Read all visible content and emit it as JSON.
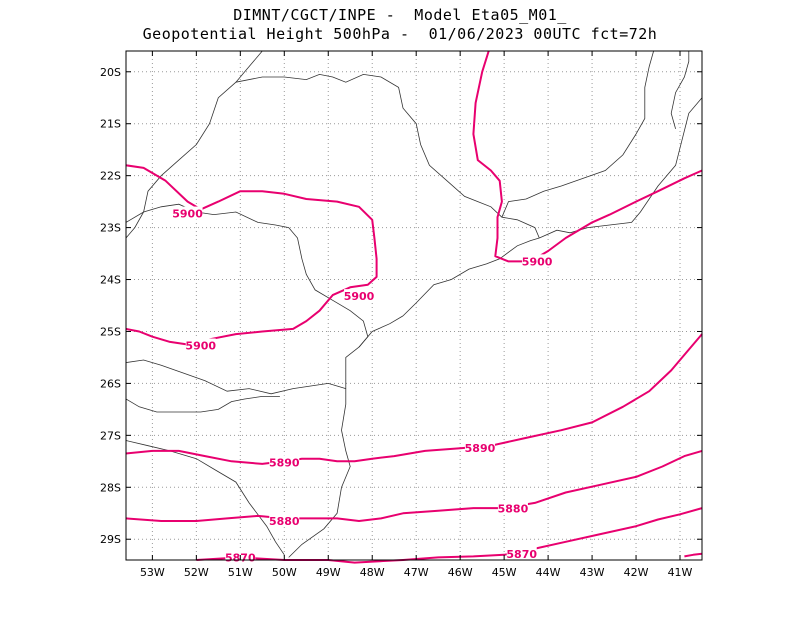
{
  "header": {
    "line1": "DIMNT/CGCT/INPE -  Model Eta05_M01_",
    "line2": "Geopotential Height 500hPa -  01/06/2023 00UTC fct=72h"
  },
  "chart_data": {
    "type": "map-contour",
    "variable": "Geopotential Height 500hPa",
    "lon_range": [
      -53.6,
      -40.5
    ],
    "lat_range": [
      -29.4,
      -19.6
    ],
    "x_ticks": [
      "53W",
      "52W",
      "51W",
      "50W",
      "49W",
      "48W",
      "47W",
      "46W",
      "45W",
      "44W",
      "43W",
      "42W",
      "41W"
    ],
    "y_ticks": [
      "20S",
      "21S",
      "22S",
      "23S",
      "24S",
      "25S",
      "26S",
      "27S",
      "28S",
      "29S"
    ],
    "grid": true,
    "contour_color": "#e8006f",
    "contours": [
      {
        "level": "5900",
        "segment": "west",
        "points": [
          [
            -53.6,
            -21.8
          ],
          [
            -53.2,
            -21.85
          ],
          [
            -52.7,
            -22.1
          ],
          [
            -52.2,
            -22.5
          ],
          [
            -51.9,
            -22.65
          ],
          [
            -51.5,
            -22.5
          ],
          [
            -51.0,
            -22.3
          ],
          [
            -50.5,
            -22.3
          ],
          [
            -50.0,
            -22.35
          ],
          [
            -49.5,
            -22.45
          ],
          [
            -48.8,
            -22.5
          ],
          [
            -48.3,
            -22.6
          ],
          [
            -48.0,
            -22.85
          ],
          [
            -47.95,
            -23.2
          ],
          [
            -47.9,
            -23.6
          ],
          [
            -47.9,
            -23.95
          ],
          [
            -48.1,
            -24.1
          ],
          [
            -48.5,
            -24.15
          ],
          [
            -48.9,
            -24.3
          ],
          [
            -49.2,
            -24.6
          ],
          [
            -49.5,
            -24.8
          ],
          [
            -49.8,
            -24.95
          ],
          [
            -50.5,
            -25.0
          ],
          [
            -51.1,
            -25.05
          ],
          [
            -51.7,
            -25.15
          ],
          [
            -52.2,
            -25.25
          ],
          [
            -52.6,
            -25.2
          ],
          [
            -53.0,
            -25.1
          ],
          [
            -53.3,
            -25.0
          ],
          [
            -53.6,
            -24.95
          ]
        ]
      },
      {
        "level": "5900",
        "segment": "east",
        "points": [
          [
            -45.35,
            -19.6
          ],
          [
            -45.5,
            -20.0
          ],
          [
            -45.65,
            -20.6
          ],
          [
            -45.7,
            -21.2
          ],
          [
            -45.6,
            -21.7
          ],
          [
            -45.3,
            -21.9
          ],
          [
            -45.1,
            -22.1
          ],
          [
            -45.05,
            -22.5
          ],
          [
            -45.15,
            -22.8
          ],
          [
            -45.15,
            -23.2
          ],
          [
            -45.2,
            -23.55
          ],
          [
            -44.9,
            -23.65
          ],
          [
            -44.4,
            -23.65
          ],
          [
            -44.0,
            -23.45
          ],
          [
            -43.6,
            -23.2
          ],
          [
            -43.0,
            -22.9
          ],
          [
            -42.6,
            -22.75
          ],
          [
            -42.0,
            -22.5
          ],
          [
            -41.5,
            -22.3
          ],
          [
            -40.9,
            -22.05
          ],
          [
            -40.5,
            -21.9
          ]
        ]
      },
      {
        "level": "5890",
        "points": [
          [
            -53.6,
            -27.35
          ],
          [
            -53.0,
            -27.3
          ],
          [
            -52.4,
            -27.3
          ],
          [
            -51.8,
            -27.4
          ],
          [
            -51.2,
            -27.5
          ],
          [
            -50.5,
            -27.55
          ],
          [
            -50.0,
            -27.5
          ],
          [
            -49.6,
            -27.45
          ],
          [
            -49.2,
            -27.45
          ],
          [
            -48.8,
            -27.5
          ],
          [
            -48.4,
            -27.5
          ],
          [
            -48.0,
            -27.45
          ],
          [
            -47.5,
            -27.4
          ],
          [
            -46.8,
            -27.3
          ],
          [
            -46.0,
            -27.25
          ],
          [
            -45.3,
            -27.2
          ],
          [
            -44.5,
            -27.05
          ],
          [
            -43.7,
            -26.9
          ],
          [
            -43.0,
            -26.75
          ],
          [
            -42.3,
            -26.45
          ],
          [
            -41.7,
            -26.15
          ],
          [
            -41.2,
            -25.75
          ],
          [
            -40.8,
            -25.35
          ],
          [
            -40.5,
            -25.05
          ]
        ]
      },
      {
        "level": "5880",
        "points": [
          [
            -53.6,
            -28.6
          ],
          [
            -52.8,
            -28.65
          ],
          [
            -52.0,
            -28.65
          ],
          [
            -51.3,
            -28.6
          ],
          [
            -50.6,
            -28.55
          ],
          [
            -50.0,
            -28.6
          ],
          [
            -49.4,
            -28.6
          ],
          [
            -48.8,
            -28.6
          ],
          [
            -48.3,
            -28.65
          ],
          [
            -47.8,
            -28.6
          ],
          [
            -47.3,
            -28.5
          ],
          [
            -46.5,
            -28.45
          ],
          [
            -45.7,
            -28.4
          ],
          [
            -45.0,
            -28.4
          ],
          [
            -44.3,
            -28.3
          ],
          [
            -43.6,
            -28.1
          ],
          [
            -42.8,
            -27.95
          ],
          [
            -42.0,
            -27.8
          ],
          [
            -41.4,
            -27.6
          ],
          [
            -40.9,
            -27.4
          ],
          [
            -40.5,
            -27.3
          ]
        ]
      },
      {
        "level": "5870",
        "points": [
          [
            -52.0,
            -29.4
          ],
          [
            -51.0,
            -29.35
          ],
          [
            -50.0,
            -29.4
          ],
          [
            -49.0,
            -29.4
          ],
          [
            -48.4,
            -29.45
          ],
          [
            -47.3,
            -29.4
          ],
          [
            -46.5,
            -29.35
          ],
          [
            -45.7,
            -29.33
          ],
          [
            -45.0,
            -29.3
          ],
          [
            -44.4,
            -29.2
          ],
          [
            -43.6,
            -29.05
          ],
          [
            -42.8,
            -28.9
          ],
          [
            -42.0,
            -28.75
          ],
          [
            -41.5,
            -28.62
          ],
          [
            -41.0,
            -28.52
          ],
          [
            -40.5,
            -28.4
          ]
        ]
      },
      {
        "level": "5870",
        "segment": "edge",
        "points": [
          [
            -40.9,
            -29.33
          ],
          [
            -40.7,
            -29.3
          ],
          [
            -40.5,
            -29.28
          ]
        ]
      }
    ],
    "labels": [
      {
        "text": "5900",
        "lon": -52.2,
        "lat": -22.73
      },
      {
        "text": "5900",
        "lon": -48.3,
        "lat": -24.32
      },
      {
        "text": "5900",
        "lon": -51.9,
        "lat": -25.27
      },
      {
        "text": "5900",
        "lon": -44.25,
        "lat": -23.65
      },
      {
        "text": "5890",
        "lon": -50.0,
        "lat": -27.52
      },
      {
        "text": "5890",
        "lon": -45.55,
        "lat": -27.24
      },
      {
        "text": "5880",
        "lon": -50.0,
        "lat": -28.65
      },
      {
        "text": "5880",
        "lon": -44.8,
        "lat": -28.41
      },
      {
        "text": "5870",
        "lon": -51.0,
        "lat": -29.35
      },
      {
        "text": "5870",
        "lon": -44.6,
        "lat": -29.28
      }
    ],
    "boundaries": [
      [
        [
          -53.6,
          -23.2
        ],
        [
          -53.4,
          -23.0
        ],
        [
          -53.2,
          -22.7
        ],
        [
          -53.1,
          -22.3
        ],
        [
          -52.8,
          -22.0
        ],
        [
          -52.4,
          -21.7
        ],
        [
          -52.0,
          -21.4
        ],
        [
          -51.7,
          -21.0
        ],
        [
          -51.5,
          -20.5
        ],
        [
          -51.1,
          -20.2
        ],
        [
          -50.9,
          -20.0
        ],
        [
          -50.7,
          -19.8
        ],
        [
          -50.5,
          -19.6
        ]
      ],
      [
        [
          -51.1,
          -20.2
        ],
        [
          -50.5,
          -20.1
        ],
        [
          -50.0,
          -20.1
        ],
        [
          -49.5,
          -20.15
        ],
        [
          -49.2,
          -20.05
        ],
        [
          -48.9,
          -20.1
        ],
        [
          -48.6,
          -20.2
        ],
        [
          -48.2,
          -20.05
        ],
        [
          -47.8,
          -20.1
        ],
        [
          -47.4,
          -20.3
        ],
        [
          -47.3,
          -20.7
        ],
        [
          -47.0,
          -21.0
        ],
        [
          -46.9,
          -21.4
        ],
        [
          -46.7,
          -21.8
        ],
        [
          -46.3,
          -22.1
        ],
        [
          -45.9,
          -22.4
        ],
        [
          -45.6,
          -22.5
        ],
        [
          -45.3,
          -22.6
        ],
        [
          -45.05,
          -22.8
        ],
        [
          -44.7,
          -22.85
        ],
        [
          -44.3,
          -23.0
        ],
        [
          -44.2,
          -23.2
        ]
      ],
      [
        [
          -45.05,
          -22.8
        ],
        [
          -44.9,
          -22.5
        ],
        [
          -44.5,
          -22.45
        ],
        [
          -44.1,
          -22.3
        ],
        [
          -43.7,
          -22.2
        ],
        [
          -43.2,
          -22.05
        ],
        [
          -42.7,
          -21.9
        ],
        [
          -42.3,
          -21.6
        ],
        [
          -42.0,
          -21.2
        ],
        [
          -41.8,
          -20.9
        ],
        [
          -41.8,
          -20.3
        ],
        [
          -41.7,
          -19.9
        ],
        [
          -41.6,
          -19.6
        ]
      ],
      [
        [
          -41.1,
          -21.1
        ],
        [
          -41.2,
          -20.8
        ],
        [
          -41.1,
          -20.4
        ],
        [
          -40.9,
          -20.1
        ],
        [
          -40.8,
          -19.8
        ],
        [
          -40.8,
          -19.6
        ]
      ],
      [
        [
          -53.6,
          -22.9
        ],
        [
          -53.2,
          -22.7
        ],
        [
          -52.8,
          -22.6
        ],
        [
          -52.4,
          -22.55
        ],
        [
          -52.0,
          -22.7
        ],
        [
          -51.6,
          -22.75
        ],
        [
          -51.1,
          -22.7
        ],
        [
          -50.6,
          -22.9
        ],
        [
          -50.2,
          -22.95
        ],
        [
          -49.9,
          -23.0
        ],
        [
          -49.7,
          -23.2
        ],
        [
          -49.6,
          -23.6
        ],
        [
          -49.5,
          -23.9
        ],
        [
          -49.3,
          -24.2
        ],
        [
          -48.9,
          -24.4
        ],
        [
          -48.5,
          -24.6
        ],
        [
          -48.2,
          -24.8
        ],
        [
          -48.1,
          -25.1
        ],
        [
          -48.3,
          -25.3
        ]
      ],
      [
        [
          -53.6,
          -25.6
        ],
        [
          -53.2,
          -25.55
        ],
        [
          -52.8,
          -25.65
        ],
        [
          -52.3,
          -25.8
        ],
        [
          -51.8,
          -25.95
        ],
        [
          -51.3,
          -26.15
        ],
        [
          -50.8,
          -26.1
        ],
        [
          -50.3,
          -26.2
        ],
        [
          -49.8,
          -26.1
        ],
        [
          -49.4,
          -26.05
        ],
        [
          -49.0,
          -26.0
        ],
        [
          -48.6,
          -26.1
        ]
      ],
      [
        [
          -53.6,
          -26.3
        ],
        [
          -53.3,
          -26.45
        ],
        [
          -52.9,
          -26.55
        ],
        [
          -52.4,
          -26.55
        ],
        [
          -51.9,
          -26.55
        ],
        [
          -51.5,
          -26.5
        ],
        [
          -51.2,
          -26.35
        ],
        [
          -50.9,
          -26.3
        ],
        [
          -50.5,
          -26.25
        ],
        [
          -50.1,
          -26.25
        ]
      ],
      [
        [
          -53.6,
          -27.1
        ],
        [
          -53.1,
          -27.2
        ],
        [
          -52.6,
          -27.3
        ],
        [
          -52.0,
          -27.45
        ],
        [
          -51.6,
          -27.65
        ],
        [
          -51.1,
          -27.9
        ],
        [
          -50.8,
          -28.3
        ],
        [
          -50.4,
          -28.75
        ],
        [
          -50.2,
          -29.05
        ],
        [
          -50.0,
          -29.3
        ]
      ],
      [
        [
          -44.2,
          -23.2
        ],
        [
          -43.8,
          -23.05
        ],
        [
          -43.5,
          -23.1
        ],
        [
          -43.1,
          -23.0
        ],
        [
          -42.6,
          -22.95
        ],
        [
          -42.1,
          -22.9
        ],
        [
          -41.9,
          -22.7
        ],
        [
          -41.5,
          -22.2
        ],
        [
          -41.1,
          -21.8
        ],
        [
          -40.95,
          -21.3
        ],
        [
          -40.8,
          -20.8
        ],
        [
          -40.5,
          -20.5
        ]
      ],
      [
        [
          -47.3,
          -24.7
        ],
        [
          -47.0,
          -24.45
        ],
        [
          -46.6,
          -24.1
        ],
        [
          -46.2,
          -24.0
        ],
        [
          -45.8,
          -23.8
        ],
        [
          -45.4,
          -23.7
        ],
        [
          -45.1,
          -23.6
        ],
        [
          -44.7,
          -23.35
        ],
        [
          -44.4,
          -23.25
        ],
        [
          -44.2,
          -23.2
        ]
      ],
      [
        [
          -48.3,
          -25.3
        ],
        [
          -48.6,
          -25.5
        ],
        [
          -48.6,
          -26.0
        ],
        [
          -48.6,
          -26.4
        ],
        [
          -48.7,
          -26.9
        ],
        [
          -48.6,
          -27.3
        ],
        [
          -48.5,
          -27.6
        ],
        [
          -48.7,
          -28.0
        ],
        [
          -48.8,
          -28.5
        ],
        [
          -49.1,
          -28.8
        ],
        [
          -49.6,
          -29.1
        ],
        [
          -49.9,
          -29.35
        ]
      ],
      [
        [
          -48.3,
          -25.3
        ],
        [
          -48.0,
          -25.0
        ],
        [
          -47.6,
          -24.85
        ],
        [
          -47.3,
          -24.7
        ]
      ]
    ]
  }
}
